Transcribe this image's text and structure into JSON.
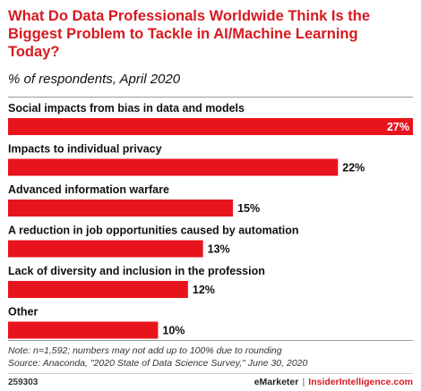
{
  "header": {
    "title": "What Do Data Professionals Worldwide Think Is the Biggest Problem to Tackle in AI/Machine Learning Today?",
    "subtitle": "% of respondents, April 2020"
  },
  "colors": {
    "bar": "#e8141d",
    "title": "#d71920",
    "label_inside": "#ffffff",
    "label_outside": "#111111"
  },
  "chart_data": {
    "type": "bar",
    "orientation": "horizontal",
    "categories": [
      "Social impacts from bias in data and models",
      "Impacts to individual privacy",
      "Advanced information warfare",
      "A reduction in job opportunities caused by automation",
      "Lack of diversity and inclusion in the profession",
      "Other"
    ],
    "values": [
      27,
      22,
      15,
      13,
      12,
      10
    ],
    "value_labels": [
      "27%",
      "22%",
      "15%",
      "13%",
      "12%",
      "10%"
    ],
    "xlim": [
      0,
      27
    ],
    "unit": "%",
    "grid": false,
    "legend": "none"
  },
  "notes": {
    "note": "Note: n=1,592; numbers may not add up to 100% due to rounding",
    "source": "Source: Anaconda, \"2020 State of Data Science Survey,\" June 30, 2020"
  },
  "footer": {
    "chart_id": "259303",
    "brand_emarketer": "eMarketer",
    "separator": "|",
    "brand_insider": "InsiderIntelligence.com"
  }
}
